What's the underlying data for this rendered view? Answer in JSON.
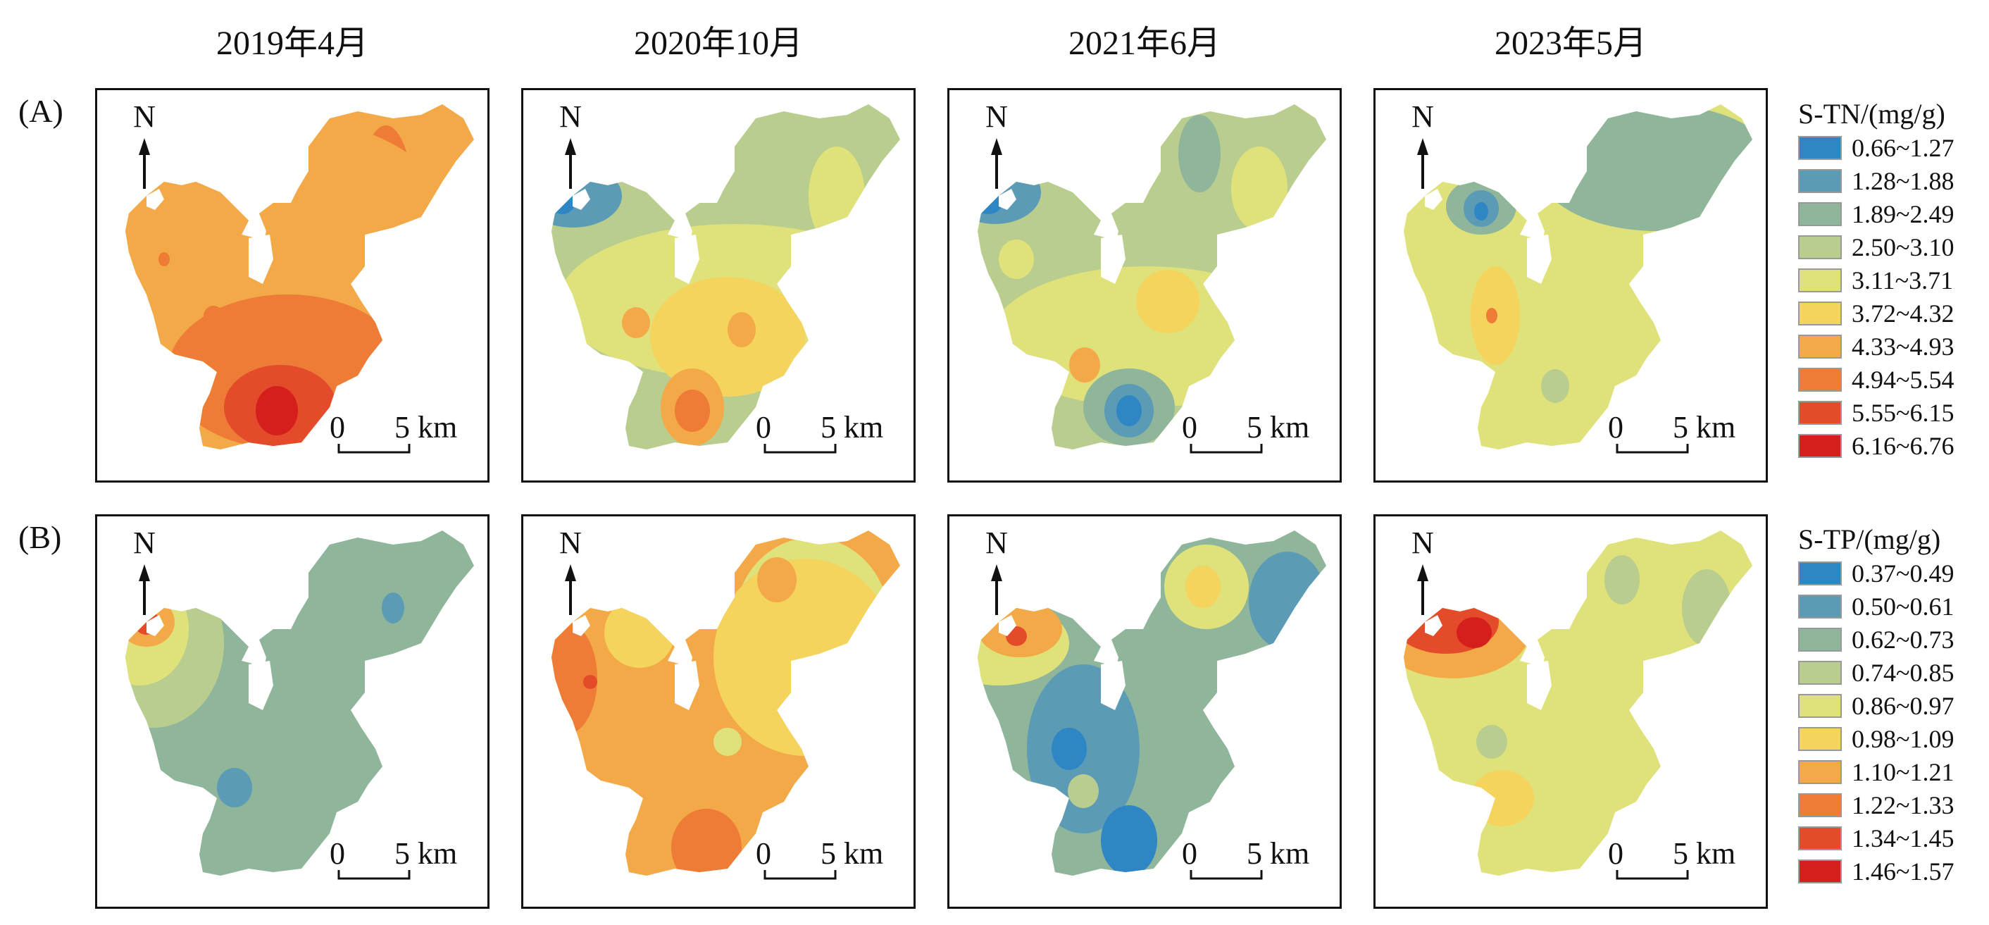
{
  "columns": [
    "2019年4月",
    "2020年10月",
    "2021年6月",
    "2023年5月"
  ],
  "north_label": "N",
  "scale_zero": "0",
  "scale_label": "5 km",
  "rows": [
    {
      "label": "(A)",
      "legend_title": "S-TN/(mg/g)",
      "classes": [
        {
          "range": "0.66~1.27",
          "color": "#2f86c4"
        },
        {
          "range": "1.28~1.88",
          "color": "#5b9bb5"
        },
        {
          "range": "1.89~2.49",
          "color": "#8fb59a"
        },
        {
          "range": "2.50~3.10",
          "color": "#b9cd8e"
        },
        {
          "range": "3.11~3.71",
          "color": "#dfe27a"
        },
        {
          "range": "3.72~4.32",
          "color": "#f4d45c"
        },
        {
          "range": "4.33~4.93",
          "color": "#f3a947"
        },
        {
          "range": "4.94~5.54",
          "color": "#ee7b36"
        },
        {
          "range": "5.55~6.15",
          "color": "#e34b2a"
        },
        {
          "range": "6.16~6.76",
          "color": "#d41f1c"
        }
      ]
    },
    {
      "label": "(B)",
      "legend_title": "S-TP/(mg/g)",
      "classes": [
        {
          "range": "0.37~0.49",
          "color": "#2f86c4"
        },
        {
          "range": "0.50~0.61",
          "color": "#5b9bb5"
        },
        {
          "range": "0.62~0.73",
          "color": "#8fb59a"
        },
        {
          "range": "0.74~0.85",
          "color": "#b9cd8e"
        },
        {
          "range": "0.86~0.97",
          "color": "#dfe27a"
        },
        {
          "range": "0.98~1.09",
          "color": "#f4d45c"
        },
        {
          "range": "1.10~1.21",
          "color": "#f3a947"
        },
        {
          "range": "1.22~1.33",
          "color": "#ee7b36"
        },
        {
          "range": "1.34~1.45",
          "color": "#e34b2a"
        },
        {
          "range": "1.46~1.57",
          "color": "#d41f1c"
        }
      ]
    }
  ],
  "maps": [
    {
      "row": 0,
      "col": 0,
      "base": 6,
      "patches": [
        {
          "type": "ellipse",
          "c": 5,
          "pts": [
            [
              120,
              140
            ],
            [
              160,
              70
            ]
          ]
        },
        {
          "type": "ellipse",
          "c": 7,
          "pts": [
            [
              410,
              170
            ],
            [
              40,
              120
            ]
          ]
        },
        {
          "type": "ellipse",
          "c": 6,
          "pts": [
            [
              270,
              240
            ],
            [
              260,
              200
            ]
          ]
        },
        {
          "type": "ellipse",
          "c": 7,
          "pts": [
            [
              270,
              400
            ],
            [
              170,
              110
            ]
          ]
        },
        {
          "type": "ellipse",
          "c": 8,
          "pts": [
            [
              260,
              450
            ],
            [
              80,
              60
            ]
          ]
        },
        {
          "type": "ellipse",
          "c": 9,
          "pts": [
            [
              255,
              455
            ],
            [
              30,
              35
            ]
          ]
        },
        {
          "type": "ellipse",
          "c": 7,
          "pts": [
            [
              165,
              320
            ],
            [
              14,
              14
            ]
          ]
        },
        {
          "type": "ellipse",
          "c": 7,
          "pts": [
            [
              95,
              240
            ],
            [
              8,
              10
            ]
          ]
        }
      ]
    },
    {
      "row": 0,
      "col": 1,
      "base": 3,
      "patches": [
        {
          "type": "ellipse",
          "c": 1,
          "pts": [
            [
              70,
              150
            ],
            [
              70,
              45
            ]
          ]
        },
        {
          "type": "ellipse",
          "c": 0,
          "pts": [
            [
              55,
              160
            ],
            [
              18,
              16
            ]
          ]
        },
        {
          "type": "ellipse",
          "c": 4,
          "pts": [
            [
              300,
              300
            ],
            [
              250,
              110
            ]
          ]
        },
        {
          "type": "ellipse",
          "c": 4,
          "pts": [
            [
              445,
              150
            ],
            [
              40,
              70
            ]
          ]
        },
        {
          "type": "ellipse",
          "c": 5,
          "pts": [
            [
              290,
              350
            ],
            [
              110,
              85
            ]
          ]
        },
        {
          "type": "ellipse",
          "c": 6,
          "pts": [
            [
              160,
              330
            ],
            [
              20,
              22
            ]
          ]
        },
        {
          "type": "ellipse",
          "c": 6,
          "pts": [
            [
              310,
              340
            ],
            [
              20,
              25
            ]
          ]
        },
        {
          "type": "ellipse",
          "c": 6,
          "pts": [
            [
              240,
              450
            ],
            [
              45,
              55
            ]
          ]
        },
        {
          "type": "ellipse",
          "c": 7,
          "pts": [
            [
              240,
              455
            ],
            [
              25,
              30
            ]
          ]
        }
      ]
    },
    {
      "row": 0,
      "col": 2,
      "base": 3,
      "patches": [
        {
          "type": "ellipse",
          "c": 1,
          "pts": [
            [
              65,
              145
            ],
            [
              65,
              45
            ]
          ]
        },
        {
          "type": "ellipse",
          "c": 0,
          "pts": [
            [
              55,
              160
            ],
            [
              20,
              16
            ]
          ]
        },
        {
          "type": "ellipse",
          "c": 2,
          "pts": [
            [
              355,
              90
            ],
            [
              30,
              55
            ]
          ]
        },
        {
          "type": "ellipse",
          "c": 4,
          "pts": [
            [
              440,
              140
            ],
            [
              40,
              60
            ]
          ]
        },
        {
          "type": "ellipse",
          "c": 4,
          "pts": [
            [
              280,
              350
            ],
            [
              220,
              100
            ]
          ]
        },
        {
          "type": "ellipse",
          "c": 4,
          "pts": [
            [
              95,
              240
            ],
            [
              25,
              28
            ]
          ]
        },
        {
          "type": "ellipse",
          "c": 5,
          "pts": [
            [
              310,
              300
            ],
            [
              45,
              45
            ]
          ]
        },
        {
          "type": "ellipse",
          "c": 6,
          "pts": [
            [
              192,
              390
            ],
            [
              22,
              25
            ]
          ]
        },
        {
          "type": "ellipse",
          "c": 2,
          "pts": [
            [
              255,
              450
            ],
            [
              65,
              55
            ]
          ]
        },
        {
          "type": "ellipse",
          "c": 1,
          "pts": [
            [
              255,
              455
            ],
            [
              35,
              38
            ]
          ]
        },
        {
          "type": "ellipse",
          "c": 0,
          "pts": [
            [
              255,
              455
            ],
            [
              18,
              22
            ]
          ]
        }
      ]
    },
    {
      "row": 0,
      "col": 3,
      "base": 4,
      "patches": [
        {
          "type": "ellipse",
          "c": 2,
          "pts": [
            [
              400,
              110
            ],
            [
              170,
              90
            ]
          ]
        },
        {
          "type": "ellipse",
          "c": 2,
          "pts": [
            [
              150,
              165
            ],
            [
              50,
              40
            ]
          ]
        },
        {
          "type": "ellipse",
          "c": 1,
          "pts": [
            [
              150,
              168
            ],
            [
              25,
              26
            ]
          ]
        },
        {
          "type": "ellipse",
          "c": 0,
          "pts": [
            [
              150,
              172
            ],
            [
              10,
              13
            ]
          ]
        },
        {
          "type": "ellipse",
          "c": 5,
          "pts": [
            [
              170,
              320
            ],
            [
              35,
              70
            ]
          ]
        },
        {
          "type": "ellipse",
          "c": 7,
          "pts": [
            [
              165,
              320
            ],
            [
              8,
              11
            ]
          ]
        },
        {
          "type": "ellipse",
          "c": 3,
          "pts": [
            [
              255,
              420
            ],
            [
              20,
              24
            ]
          ]
        }
      ]
    },
    {
      "row": 1,
      "col": 0,
      "base": 2,
      "patches": [
        {
          "type": "ellipse",
          "c": 3,
          "pts": [
            [
              80,
              180
            ],
            [
              100,
              120
            ]
          ]
        },
        {
          "type": "ellipse",
          "c": 4,
          "pts": [
            [
              60,
              160
            ],
            [
              70,
              80
            ]
          ]
        },
        {
          "type": "ellipse",
          "c": 6,
          "pts": [
            [
              70,
              150
            ],
            [
              40,
              35
            ]
          ]
        },
        {
          "type": "ellipse",
          "c": 8,
          "pts": [
            [
              70,
              150
            ],
            [
              18,
              18
            ]
          ]
        },
        {
          "type": "ellipse",
          "c": 1,
          "pts": [
            [
              420,
              130
            ],
            [
              16,
              22
            ]
          ]
        },
        {
          "type": "ellipse",
          "c": 1,
          "pts": [
            [
              410,
              230
            ],
            [
              22,
              28
            ]
          ]
        },
        {
          "type": "ellipse",
          "c": 1,
          "pts": [
            [
              195,
              385
            ],
            [
              25,
              28
            ]
          ]
        }
      ]
    },
    {
      "row": 1,
      "col": 1,
      "base": 6,
      "patches": [
        {
          "type": "ellipse",
          "c": 4,
          "pts": [
            [
              410,
              150
            ],
            [
              110,
              120
            ]
          ]
        },
        {
          "type": "ellipse",
          "c": 5,
          "pts": [
            [
              400,
              200
            ],
            [
              130,
              140
            ]
          ]
        },
        {
          "type": "ellipse",
          "c": 3,
          "pts": [
            [
              430,
              260
            ],
            [
              50,
              60
            ]
          ]
        },
        {
          "type": "ellipse",
          "c": 6,
          "pts": [
            [
              360,
              90
            ],
            [
              28,
              32
            ]
          ]
        },
        {
          "type": "ellipse",
          "c": 5,
          "pts": [
            [
              165,
              165
            ],
            [
              50,
              50
            ]
          ]
        },
        {
          "type": "ellipse",
          "c": 7,
          "pts": [
            [
              60,
              230
            ],
            [
              45,
              80
            ]
          ]
        },
        {
          "type": "ellipse",
          "c": 8,
          "pts": [
            [
              95,
              235
            ],
            [
              10,
              10
            ]
          ]
        },
        {
          "type": "ellipse",
          "c": 4,
          "pts": [
            [
              290,
              320
            ],
            [
              20,
              20
            ]
          ]
        },
        {
          "type": "ellipse",
          "c": 7,
          "pts": [
            [
              260,
              470
            ],
            [
              50,
              55
            ]
          ]
        }
      ]
    },
    {
      "row": 1,
      "col": 2,
      "base": 2,
      "patches": [
        {
          "type": "ellipse",
          "c": 4,
          "pts": [
            [
              70,
              180
            ],
            [
              100,
              60
            ]
          ]
        },
        {
          "type": "ellipse",
          "c": 6,
          "pts": [
            [
              100,
              160
            ],
            [
              60,
              40
            ]
          ]
        },
        {
          "type": "ellipse",
          "c": 8,
          "pts": [
            [
              95,
              170
            ],
            [
              15,
              14
            ]
          ]
        },
        {
          "type": "ellipse",
          "c": 4,
          "pts": [
            [
              365,
              100
            ],
            [
              60,
              60
            ]
          ]
        },
        {
          "type": "ellipse",
          "c": 5,
          "pts": [
            [
              360,
              100
            ],
            [
              25,
              30
            ]
          ]
        },
        {
          "type": "ellipse",
          "c": 0,
          "pts": [
            [
              490,
              110
            ],
            [
              35,
              40
            ]
          ]
        },
        {
          "type": "ellipse",
          "c": 1,
          "pts": [
            [
              480,
              120
            ],
            [
              55,
              70
            ]
          ]
        },
        {
          "type": "ellipse",
          "c": 1,
          "pts": [
            [
              190,
              330
            ],
            [
              80,
              120
            ]
          ]
        },
        {
          "type": "ellipse",
          "c": 0,
          "pts": [
            [
              170,
              330
            ],
            [
              25,
              30
            ]
          ]
        },
        {
          "type": "ellipse",
          "c": 3,
          "pts": [
            [
              190,
              390
            ],
            [
              22,
              24
            ]
          ]
        },
        {
          "type": "ellipse",
          "c": 0,
          "pts": [
            [
              255,
              460
            ],
            [
              40,
              50
            ]
          ]
        }
      ]
    },
    {
      "row": 1,
      "col": 3,
      "base": 4,
      "patches": [
        {
          "type": "ellipse",
          "c": 6,
          "pts": [
            [
              110,
              160
            ],
            [
              110,
              70
            ]
          ]
        },
        {
          "type": "ellipse",
          "c": 8,
          "pts": [
            [
              100,
              150
            ],
            [
              75,
              45
            ]
          ]
        },
        {
          "type": "ellipse",
          "c": 9,
          "pts": [
            [
              140,
              165
            ],
            [
              25,
              22
            ]
          ]
        },
        {
          "type": "ellipse",
          "c": 3,
          "pts": [
            [
              350,
              90
            ],
            [
              25,
              35
            ]
          ]
        },
        {
          "type": "ellipse",
          "c": 3,
          "pts": [
            [
              470,
              130
            ],
            [
              35,
              55
            ]
          ]
        },
        {
          "type": "ellipse",
          "c": 2,
          "pts": [
            [
              400,
              235
            ],
            [
              10,
              10
            ]
          ]
        },
        {
          "type": "ellipse",
          "c": 3,
          "pts": [
            [
              165,
              320
            ],
            [
              22,
              24
            ]
          ]
        },
        {
          "type": "ellipse",
          "c": 5,
          "pts": [
            [
              180,
              400
            ],
            [
              45,
              40
            ]
          ]
        }
      ]
    }
  ]
}
